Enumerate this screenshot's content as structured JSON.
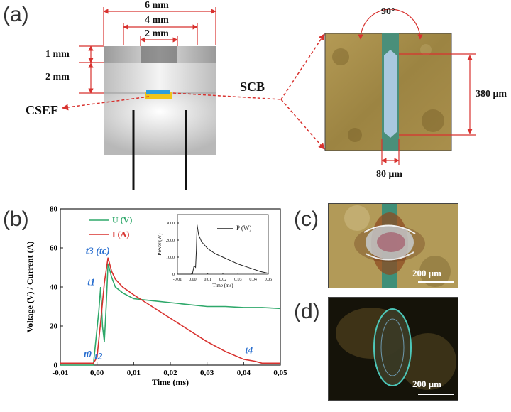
{
  "panels": {
    "a": {
      "label": "(a)",
      "dims": {
        "w6": "6 mm",
        "w4": "4 mm",
        "w2": "2 mm",
        "h1": "1 mm",
        "h2": "2 mm"
      },
      "csef_label": "CSEF",
      "scb_label": "SCB",
      "micro": {
        "angle": "90°",
        "length": "380 μm",
        "width": "80 μm"
      }
    },
    "b": {
      "label": "(b)"
    },
    "c": {
      "label": "(c)",
      "scale": "200 μm"
    },
    "d": {
      "label": "(d)",
      "scale": "200 μm"
    }
  },
  "chart_data": [
    {
      "type": "line",
      "xlabel": "Time (ms)",
      "ylabel": "Voltage (V) / Current (A)",
      "xlim": [
        -0.01,
        0.05
      ],
      "ylim": [
        0,
        80
      ],
      "xticks": [
        "-0,01",
        "0,00",
        "0,01",
        "0,02",
        "0,03",
        "0,04",
        "0,05"
      ],
      "yticks": [
        "0",
        "20",
        "40",
        "60",
        "80"
      ],
      "legend": [
        "U (V)",
        "I (A)"
      ],
      "series": [
        {
          "name": "U (V)",
          "color": "#2ea86a",
          "x": [
            -0.01,
            -0.001,
            0.0005,
            0.001,
            0.0015,
            0.002,
            0.0025,
            0.003,
            0.004,
            0.005,
            0.007,
            0.01,
            0.015,
            0.02,
            0.025,
            0.03,
            0.035,
            0.04,
            0.045,
            0.05
          ],
          "y": [
            0,
            0,
            28,
            40,
            20,
            12,
            30,
            52,
            45,
            40,
            37,
            34,
            33,
            32,
            31,
            30,
            30,
            29.5,
            29.5,
            29
          ]
        },
        {
          "name": "I (A)",
          "color": "#d8322f",
          "x": [
            -0.01,
            -0.001,
            0,
            0.001,
            0.002,
            0.003,
            0.004,
            0.005,
            0.007,
            0.01,
            0.015,
            0.02,
            0.025,
            0.03,
            0.035,
            0.04,
            0.043,
            0.045,
            0.05
          ],
          "y": [
            1,
            1,
            4,
            22,
            42,
            55,
            48,
            44,
            40,
            36,
            30,
            24,
            18,
            12,
            7,
            3,
            2,
            1,
            1
          ]
        }
      ],
      "annotations": [
        {
          "text": "t0",
          "x": -0.0015,
          "y": 4
        },
        {
          "text": "t1",
          "x": -0.0005,
          "y": 41
        },
        {
          "text": "t2",
          "x": 0.0015,
          "y": 3
        },
        {
          "text": "t3 (tc)",
          "x": 0.0035,
          "y": 57
        },
        {
          "text": "t4",
          "x": 0.0425,
          "y": 6
        }
      ]
    },
    {
      "type": "line",
      "xlabel": "Time (ms)",
      "ylabel": "Power (W)",
      "xlim": [
        -0.01,
        0.05
      ],
      "ylim": [
        0,
        3500
      ],
      "xticks": [
        "-0.01",
        "0.00",
        "0.01",
        "0.02",
        "0.03",
        "0.04",
        "0.05"
      ],
      "yticks": [
        "0",
        "1000",
        "2000",
        "3000"
      ],
      "legend": [
        "P (W)"
      ],
      "series": [
        {
          "name": "P (W)",
          "color": "#222222",
          "x": [
            -0.01,
            -0.001,
            0,
            0.001,
            0.002,
            0.0025,
            0.003,
            0.004,
            0.006,
            0.01,
            0.015,
            0.02,
            0.025,
            0.03,
            0.035,
            0.04,
            0.045,
            0.05
          ],
          "y": [
            0,
            0,
            60,
            500,
            400,
            1400,
            2900,
            2300,
            1900,
            1500,
            1200,
            1000,
            800,
            600,
            450,
            300,
            150,
            50
          ]
        }
      ]
    }
  ]
}
